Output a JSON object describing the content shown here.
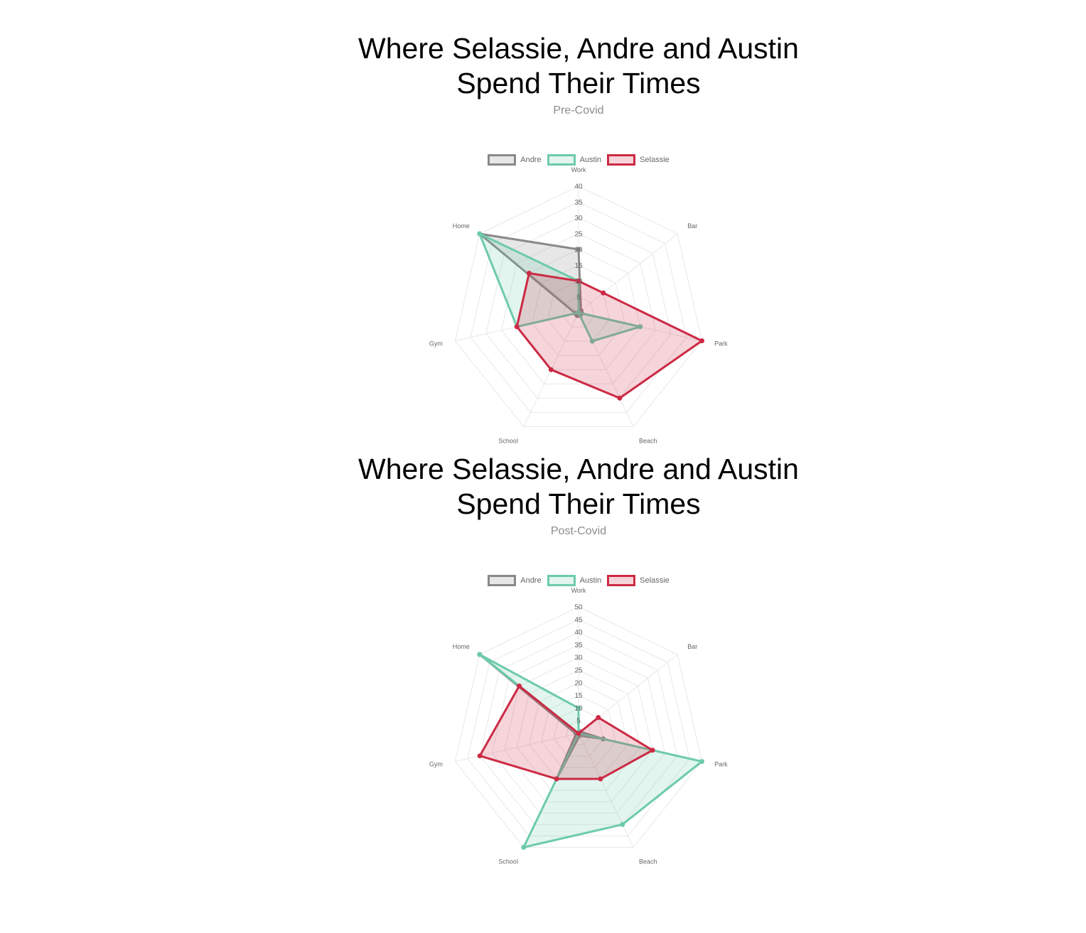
{
  "colors": {
    "andre": "#898989",
    "austin": "#6dcbaa",
    "selassie": "#cc2a44",
    "grid": "#e8e8e8",
    "label": "#666666",
    "title": "#000000",
    "subtitle": "#8c8c8c"
  },
  "chart_data": [
    {
      "type": "radar",
      "title": "Where Selassie, Andre and Austin Spend Their Times",
      "subtitle": "Pre-Covid",
      "categories": [
        "Work",
        "Bar",
        "Park",
        "Beach",
        "School",
        "Gym",
        "Home"
      ],
      "ticks": [
        "0",
        "5",
        "10",
        "15",
        "20",
        "25",
        "30",
        "35",
        "40"
      ],
      "rmax": 40,
      "legend_position": "top",
      "series": [
        {
          "name": "Andre",
          "values": [
            20,
            1,
            1,
            1,
            1,
            1,
            40
          ],
          "color": "#898989"
        },
        {
          "name": "Austin",
          "values": [
            10,
            0,
            20,
            10,
            0,
            20,
            40
          ],
          "color": "#6dcbaa"
        },
        {
          "name": "Selassie",
          "values": [
            10,
            10,
            40,
            30,
            20,
            20,
            20
          ],
          "color": "#cc2a44"
        }
      ]
    },
    {
      "type": "radar",
      "title": "Where Selassie, Andre and Austin Spend Their Times",
      "subtitle": "Post-Covid",
      "categories": [
        "Work",
        "Bar",
        "Park",
        "Beach",
        "School",
        "Gym",
        "Home"
      ],
      "ticks": [
        "0",
        "5",
        "10",
        "15",
        "20",
        "25",
        "30",
        "35",
        "40",
        "45",
        "50"
      ],
      "rmax": 50,
      "legend_position": "top",
      "series": [
        {
          "name": "Andre",
          "values": [
            0,
            1,
            10,
            1,
            20,
            1,
            50
          ],
          "color": "#898989"
        },
        {
          "name": "Austin",
          "values": [
            10,
            0,
            50,
            40,
            50,
            0,
            50
          ],
          "color": "#6dcbaa"
        },
        {
          "name": "Selassie",
          "values": [
            0,
            10,
            30,
            20,
            20,
            40,
            30
          ],
          "color": "#cc2a44"
        }
      ]
    }
  ]
}
